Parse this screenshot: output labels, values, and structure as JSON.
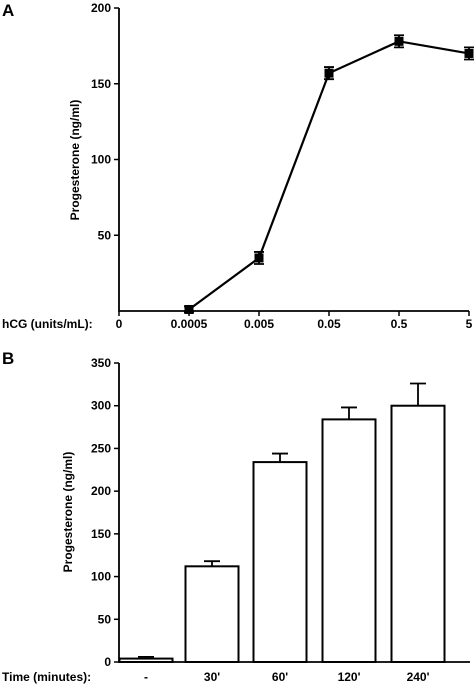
{
  "chart_data": [
    {
      "panel": "A",
      "type": "line",
      "xlabel": "hCG (units/mL):",
      "ylabel": "Progesterone (ng/ml)",
      "categories": [
        "0",
        "0.0005",
        "0.005",
        "0.05",
        "0.5",
        "5"
      ],
      "values": [
        null,
        1,
        35,
        157,
        178,
        170
      ],
      "errors": [
        null,
        2,
        4,
        4,
        4,
        4
      ],
      "ylim": [
        0,
        200
      ],
      "yticks": [
        "50",
        "100",
        "150",
        "200"
      ],
      "ytick_values": [
        50,
        100,
        150,
        200
      ],
      "marker": "square"
    },
    {
      "panel": "B",
      "type": "bar",
      "xlabel": "Time (minutes):",
      "ylabel": "Progesterone (ng/ml)",
      "categories": [
        "-",
        "30'",
        "60'",
        "120'",
        "240'"
      ],
      "values": [
        4,
        112,
        234,
        284,
        300
      ],
      "errors": [
        2,
        6,
        10,
        14,
        26
      ],
      "ylim": [
        0,
        350
      ],
      "yticks": [
        "0",
        "50",
        "100",
        "150",
        "200",
        "250",
        "300",
        "350"
      ],
      "ytick_values": [
        0,
        50,
        100,
        150,
        200,
        250,
        300,
        350
      ]
    }
  ]
}
